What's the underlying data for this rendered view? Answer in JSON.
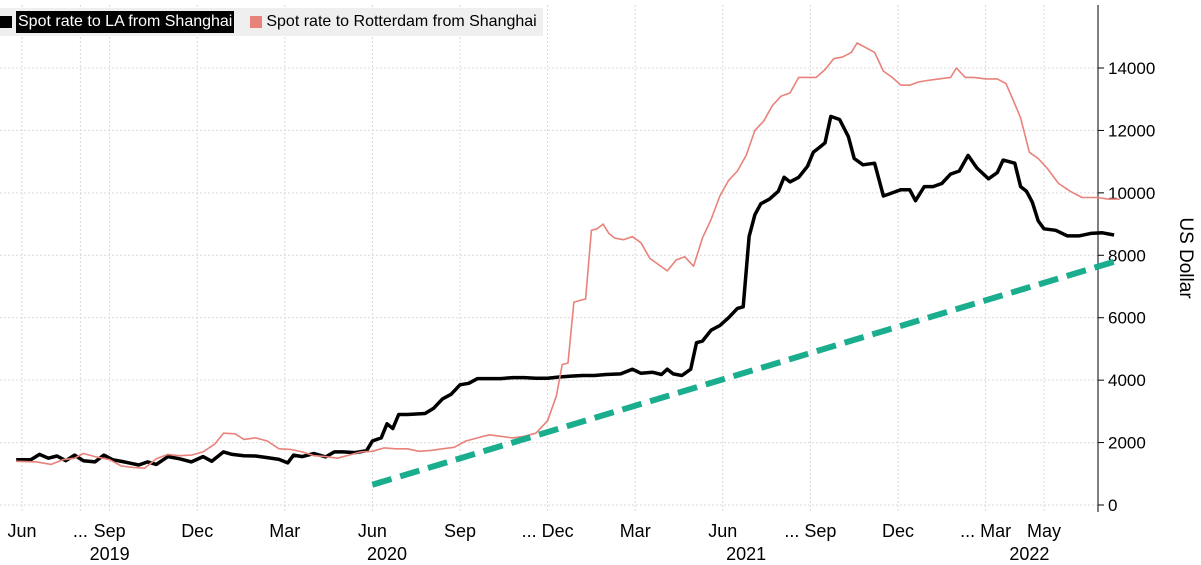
{
  "chart_data": {
    "type": "line",
    "title": "",
    "xlabel": "",
    "ylabel": "US Dollar",
    "ylim": [
      0,
      15000
    ],
    "yticks": [
      0,
      2000,
      4000,
      6000,
      8000,
      10000,
      12000,
      14000
    ],
    "ytick_labels": [
      "0",
      "2000",
      "4000",
      "6000",
      "8000",
      "10000",
      "12000",
      "14000"
    ],
    "grid": true,
    "legend_position": "top-left",
    "month_ticks": [
      {
        "label": "Jun",
        "t": 0
      },
      {
        "label": "...",
        "t": 2
      },
      {
        "label": "Sep",
        "t": 3
      },
      {
        "label": "Dec",
        "t": 6
      },
      {
        "label": "Mar",
        "t": 9
      },
      {
        "label": "Jun",
        "t": 12
      },
      {
        "label": "Sep",
        "t": 15
      },
      {
        "label": "... Dec",
        "t": 18
      },
      {
        "label": "Mar",
        "t": 21
      },
      {
        "label": "Jun",
        "t": 24
      },
      {
        "label": "... Sep",
        "t": 27
      },
      {
        "label": "Dec",
        "t": 30
      },
      {
        "label": "... Mar",
        "t": 33
      },
      {
        "label": "May",
        "t": 35
      }
    ],
    "year_labels": [
      {
        "label": "2019",
        "t": 3
      },
      {
        "label": "2020",
        "t": 12.5
      },
      {
        "label": "2021",
        "t": 24.8
      },
      {
        "label": "2022",
        "t": 34.5
      }
    ],
    "series": [
      {
        "name": "Spot rate to LA from Shanghai",
        "color": "#000000",
        "points": [
          [
            -0.2,
            1450
          ],
          [
            0.3,
            1450
          ],
          [
            0.6,
            1620
          ],
          [
            0.9,
            1500
          ],
          [
            1.2,
            1570
          ],
          [
            1.5,
            1420
          ],
          [
            1.8,
            1600
          ],
          [
            2.1,
            1420
          ],
          [
            2.5,
            1380
          ],
          [
            2.8,
            1600
          ],
          [
            3.1,
            1450
          ],
          [
            3.5,
            1380
          ],
          [
            4.0,
            1280
          ],
          [
            4.3,
            1380
          ],
          [
            4.6,
            1300
          ],
          [
            5.0,
            1550
          ],
          [
            5.4,
            1480
          ],
          [
            5.8,
            1380
          ],
          [
            6.2,
            1550
          ],
          [
            6.5,
            1400
          ],
          [
            6.9,
            1700
          ],
          [
            7.2,
            1620
          ],
          [
            7.6,
            1580
          ],
          [
            8.0,
            1570
          ],
          [
            8.4,
            1520
          ],
          [
            8.8,
            1460
          ],
          [
            9.1,
            1350
          ],
          [
            9.3,
            1600
          ],
          [
            9.6,
            1550
          ],
          [
            10.0,
            1650
          ],
          [
            10.4,
            1540
          ],
          [
            10.7,
            1700
          ],
          [
            11.0,
            1700
          ],
          [
            11.4,
            1680
          ],
          [
            11.8,
            1740
          ],
          [
            12.0,
            2050
          ],
          [
            12.3,
            2150
          ],
          [
            12.5,
            2600
          ],
          [
            12.7,
            2450
          ],
          [
            12.9,
            2900
          ],
          [
            13.2,
            2900
          ],
          [
            13.8,
            2930
          ],
          [
            14.1,
            3100
          ],
          [
            14.4,
            3400
          ],
          [
            14.7,
            3550
          ],
          [
            15.0,
            3850
          ],
          [
            15.3,
            3900
          ],
          [
            15.6,
            4050
          ],
          [
            16.0,
            4050
          ],
          [
            16.4,
            4050
          ],
          [
            16.8,
            4080
          ],
          [
            17.2,
            4080
          ],
          [
            17.6,
            4060
          ],
          [
            18.0,
            4060
          ],
          [
            18.4,
            4100
          ],
          [
            18.8,
            4130
          ],
          [
            19.2,
            4150
          ],
          [
            19.6,
            4150
          ],
          [
            20.0,
            4180
          ],
          [
            20.5,
            4200
          ],
          [
            20.9,
            4350
          ],
          [
            21.2,
            4220
          ],
          [
            21.6,
            4250
          ],
          [
            21.9,
            4180
          ],
          [
            22.1,
            4350
          ],
          [
            22.3,
            4200
          ],
          [
            22.6,
            4150
          ],
          [
            22.9,
            4350
          ],
          [
            23.1,
            5200
          ],
          [
            23.3,
            5250
          ],
          [
            23.6,
            5600
          ],
          [
            23.9,
            5750
          ],
          [
            24.2,
            6000
          ],
          [
            24.5,
            6300
          ],
          [
            24.7,
            6350
          ],
          [
            24.9,
            8600
          ],
          [
            25.1,
            9300
          ],
          [
            25.3,
            9650
          ],
          [
            25.6,
            9800
          ],
          [
            25.9,
            10050
          ],
          [
            26.1,
            10500
          ],
          [
            26.3,
            10350
          ],
          [
            26.6,
            10500
          ],
          [
            26.9,
            10850
          ],
          [
            27.1,
            11300
          ],
          [
            27.3,
            11450
          ],
          [
            27.5,
            11600
          ],
          [
            27.7,
            12450
          ],
          [
            28.0,
            12350
          ],
          [
            28.3,
            11800
          ],
          [
            28.5,
            11100
          ],
          [
            28.8,
            10900
          ],
          [
            29.2,
            10950
          ],
          [
            29.5,
            9900
          ],
          [
            29.8,
            10000
          ],
          [
            30.1,
            10100
          ],
          [
            30.4,
            10100
          ],
          [
            30.6,
            9750
          ],
          [
            30.9,
            10200
          ],
          [
            31.2,
            10200
          ],
          [
            31.5,
            10300
          ],
          [
            31.8,
            10600
          ],
          [
            32.1,
            10700
          ],
          [
            32.4,
            11200
          ],
          [
            32.7,
            10800
          ],
          [
            33.1,
            10450
          ],
          [
            33.4,
            10650
          ],
          [
            33.6,
            11050
          ],
          [
            34.0,
            10950
          ],
          [
            34.2,
            10200
          ],
          [
            34.4,
            10050
          ],
          [
            34.6,
            9700
          ],
          [
            34.8,
            9100
          ],
          [
            35.0,
            8850
          ],
          [
            35.4,
            8800
          ],
          [
            35.8,
            8620
          ],
          [
            36.2,
            8620
          ],
          [
            36.6,
            8700
          ],
          [
            37.0,
            8720
          ],
          [
            37.4,
            8650
          ]
        ]
      },
      {
        "name": "Spot rate to Rotterdam from Shanghai",
        "color": "#e8827a",
        "points": [
          [
            -0.2,
            1400
          ],
          [
            0.5,
            1380
          ],
          [
            1.0,
            1300
          ],
          [
            1.4,
            1450
          ],
          [
            1.8,
            1500
          ],
          [
            2.1,
            1650
          ],
          [
            2.5,
            1550
          ],
          [
            3.0,
            1450
          ],
          [
            3.4,
            1250
          ],
          [
            3.8,
            1200
          ],
          [
            4.2,
            1180
          ],
          [
            4.6,
            1480
          ],
          [
            5.0,
            1620
          ],
          [
            5.4,
            1580
          ],
          [
            5.8,
            1600
          ],
          [
            6.2,
            1700
          ],
          [
            6.6,
            1950
          ],
          [
            6.9,
            2300
          ],
          [
            7.3,
            2280
          ],
          [
            7.6,
            2100
          ],
          [
            8.0,
            2150
          ],
          [
            8.4,
            2050
          ],
          [
            8.8,
            1800
          ],
          [
            9.2,
            1780
          ],
          [
            9.6,
            1700
          ],
          [
            10.0,
            1580
          ],
          [
            10.4,
            1550
          ],
          [
            10.8,
            1500
          ],
          [
            11.2,
            1600
          ],
          [
            11.6,
            1700
          ],
          [
            12.0,
            1720
          ],
          [
            12.4,
            1830
          ],
          [
            12.8,
            1800
          ],
          [
            13.2,
            1800
          ],
          [
            13.6,
            1720
          ],
          [
            14.0,
            1750
          ],
          [
            14.4,
            1800
          ],
          [
            14.8,
            1850
          ],
          [
            15.2,
            2050
          ],
          [
            15.6,
            2150
          ],
          [
            16.0,
            2250
          ],
          [
            16.4,
            2200
          ],
          [
            16.8,
            2150
          ],
          [
            17.2,
            2200
          ],
          [
            17.6,
            2300
          ],
          [
            18.0,
            2700
          ],
          [
            18.3,
            3500
          ],
          [
            18.5,
            4500
          ],
          [
            18.7,
            4550
          ],
          [
            18.9,
            6500
          ],
          [
            19.1,
            6550
          ],
          [
            19.3,
            6600
          ],
          [
            19.5,
            8800
          ],
          [
            19.7,
            8850
          ],
          [
            19.9,
            9000
          ],
          [
            20.1,
            8700
          ],
          [
            20.3,
            8550
          ],
          [
            20.6,
            8500
          ],
          [
            20.9,
            8600
          ],
          [
            21.2,
            8400
          ],
          [
            21.5,
            7900
          ],
          [
            21.8,
            7700
          ],
          [
            22.1,
            7500
          ],
          [
            22.4,
            7850
          ],
          [
            22.7,
            7950
          ],
          [
            23.0,
            7650
          ],
          [
            23.3,
            8550
          ],
          [
            23.6,
            9150
          ],
          [
            23.9,
            9900
          ],
          [
            24.2,
            10400
          ],
          [
            24.5,
            10700
          ],
          [
            24.8,
            11200
          ],
          [
            25.1,
            12000
          ],
          [
            25.4,
            12300
          ],
          [
            25.7,
            12800
          ],
          [
            26.0,
            13100
          ],
          [
            26.3,
            13200
          ],
          [
            26.6,
            13700
          ],
          [
            26.9,
            13700
          ],
          [
            27.2,
            13700
          ],
          [
            27.5,
            13950
          ],
          [
            27.8,
            14300
          ],
          [
            28.1,
            14350
          ],
          [
            28.4,
            14500
          ],
          [
            28.6,
            14800
          ],
          [
            28.9,
            14650
          ],
          [
            29.2,
            14500
          ],
          [
            29.5,
            13900
          ],
          [
            29.8,
            13700
          ],
          [
            30.1,
            13450
          ],
          [
            30.4,
            13450
          ],
          [
            30.7,
            13550
          ],
          [
            31.0,
            13600
          ],
          [
            31.4,
            13650
          ],
          [
            31.8,
            13700
          ],
          [
            32.0,
            14000
          ],
          [
            32.3,
            13700
          ],
          [
            32.6,
            13700
          ],
          [
            33.0,
            13650
          ],
          [
            33.4,
            13650
          ],
          [
            33.7,
            13500
          ],
          [
            34.0,
            12850
          ],
          [
            34.2,
            12400
          ],
          [
            34.5,
            11300
          ],
          [
            34.8,
            11100
          ],
          [
            35.1,
            10800
          ],
          [
            35.5,
            10300
          ],
          [
            35.9,
            10050
          ],
          [
            36.3,
            9850
          ],
          [
            36.8,
            9850
          ],
          [
            37.2,
            9800
          ],
          [
            37.6,
            9800
          ]
        ]
      },
      {
        "name": "",
        "color": "#1aae8e",
        "dashed": true,
        "points": [
          [
            12.0,
            650
          ],
          [
            37.6,
            7850
          ]
        ]
      }
    ]
  }
}
